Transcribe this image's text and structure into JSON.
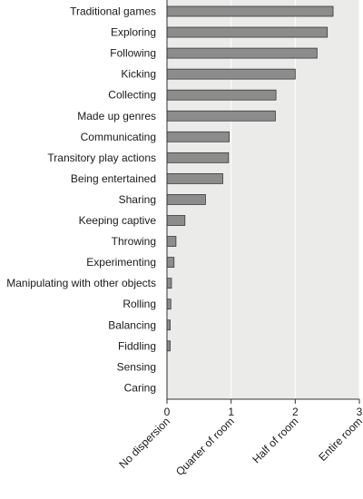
{
  "chart_data": {
    "type": "bar",
    "orientation": "horizontal",
    "categories": [
      "Traditional games",
      "Exploring",
      "Following",
      "Kicking",
      "Collecting",
      "Made up genres",
      "Communicating",
      "Transitory play actions",
      "Being entertained",
      "Sharing",
      "Keeping captive",
      "Throwing",
      "Experimenting",
      "Manipulating with other objects",
      "Rolling",
      "Balancing",
      "Fiddling",
      "Sensing",
      "Caring"
    ],
    "values": [
      2.59,
      2.5,
      2.34,
      2.0,
      1.7,
      1.69,
      0.97,
      0.96,
      0.87,
      0.6,
      0.28,
      0.14,
      0.11,
      0.07,
      0.06,
      0.05,
      0.05,
      0.0,
      0.0
    ],
    "xlim": [
      0,
      3
    ],
    "xticks": [
      "0",
      "1",
      "2",
      "3"
    ],
    "xtick_words": [
      "No dispersion",
      "Quarter of room",
      "Half of room",
      "Entire room"
    ],
    "grid": true,
    "colors": {
      "bar_fill": "#8c8c8c",
      "bar_stroke": "#3a3a3a",
      "plot_bg": "#ebebea",
      "grid": "#ffffff",
      "axis": "#333333"
    }
  }
}
